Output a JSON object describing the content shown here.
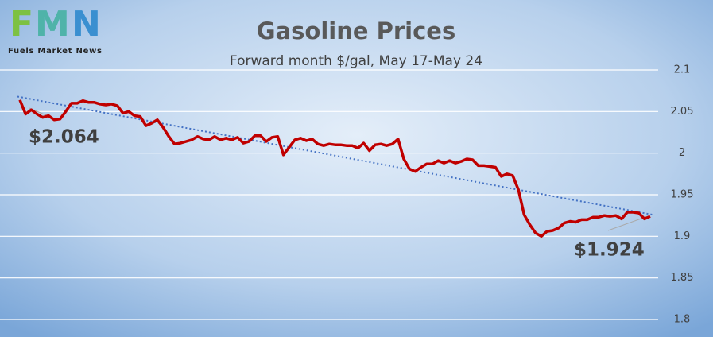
{
  "logo": {
    "letters": [
      "F",
      "M",
      "N"
    ],
    "caption": "Fuels Market News"
  },
  "chart_data": {
    "type": "line",
    "title": "Gasoline Prices",
    "subtitle": "Forward month $/gal, May 17-May 24",
    "series": [
      {
        "color": "#c00000",
        "values": [
          2.064,
          2.047,
          2.052,
          2.047,
          2.043,
          2.045,
          2.04,
          2.041,
          2.05,
          2.06,
          2.06,
          2.063,
          2.061,
          2.061,
          2.059,
          2.058,
          2.059,
          2.057,
          2.048,
          2.05,
          2.045,
          2.044,
          2.033,
          2.036,
          2.04,
          2.031,
          2.02,
          2.011,
          2.012,
          2.014,
          2.016,
          2.02,
          2.017,
          2.016,
          2.02,
          2.016,
          2.018,
          2.016,
          2.019,
          2.012,
          2.014,
          2.021,
          2.021,
          2.014,
          2.019,
          2.02,
          1.998,
          2.007,
          2.016,
          2.018,
          2.015,
          2.017,
          2.011,
          2.009,
          2.011,
          2.01,
          2.01,
          2.009,
          2.009,
          2.006,
          2.012,
          2.003,
          2.01,
          2.011,
          2.009,
          2.011,
          2.017,
          1.993,
          1.981,
          1.978,
          1.983,
          1.987,
          1.987,
          1.991,
          1.988,
          1.991,
          1.988,
          1.99,
          1.993,
          1.992,
          1.985,
          1.985,
          1.984,
          1.983,
          1.972,
          1.975,
          1.973,
          1.956,
          1.926,
          1.914,
          1.904,
          1.9,
          1.906,
          1.907,
          1.91,
          1.916,
          1.918,
          1.917,
          1.92,
          1.92,
          1.923,
          1.923,
          1.925,
          1.924,
          1.925,
          1.921,
          1.929,
          1.929,
          1.928,
          1.921,
          1.924
        ]
      }
    ],
    "trendline": {
      "start": 2.068,
      "end": 1.926,
      "color": "#4472c4"
    },
    "annotations": [
      "$2.064",
      "$1.924"
    ],
    "ylim": [
      1.8,
      2.1
    ],
    "yticks": [
      1.8,
      1.85,
      1.9,
      1.95,
      2,
      2.05,
      2.1
    ],
    "grid": true
  }
}
